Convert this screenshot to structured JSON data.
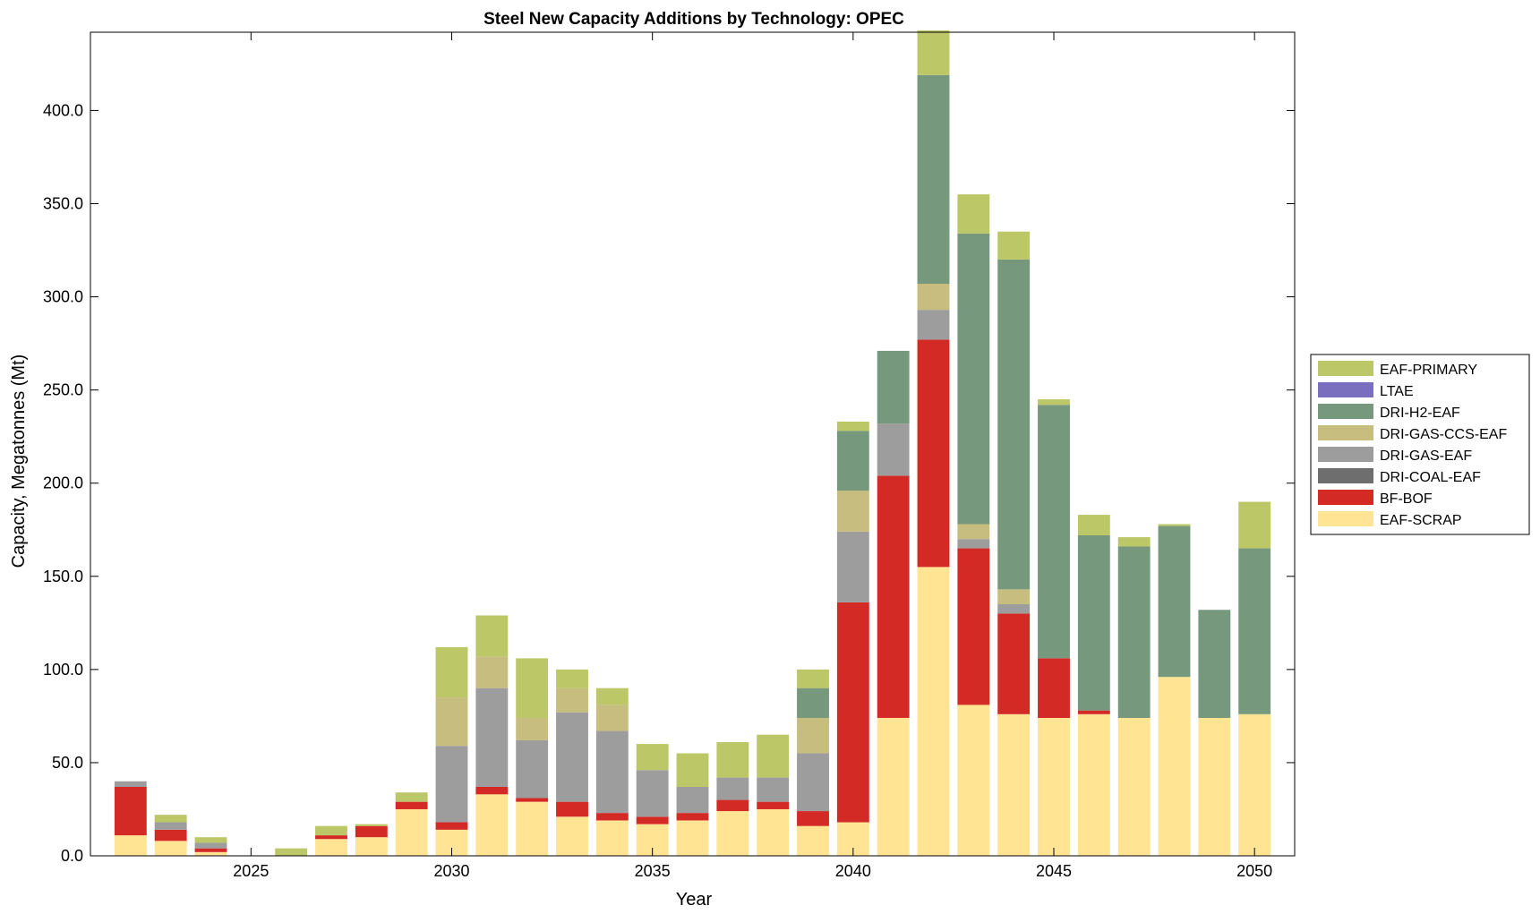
{
  "chart_data": {
    "type": "bar",
    "stacked": true,
    "title": "Steel New Capacity Additions by Technology: OPEC",
    "xlabel": "Year",
    "ylabel": "Capacity, Megatonnes (Mt)",
    "ylim": [
      0,
      442
    ],
    "xlim": [
      2021,
      2051
    ],
    "yticks": [
      0,
      50,
      100,
      150,
      200,
      250,
      300,
      350,
      400
    ],
    "ytick_labels": [
      "0.0",
      "50.0",
      "100.0",
      "150.0",
      "200.0",
      "250.0",
      "300.0",
      "350.0",
      "400.0"
    ],
    "xticks": [
      2025,
      2030,
      2035,
      2040,
      2045,
      2050
    ],
    "xtick_labels": [
      "2025",
      "2030",
      "2035",
      "2040",
      "2045",
      "2050"
    ],
    "legend_position": "right",
    "years": [
      2022,
      2023,
      2024,
      2025,
      2026,
      2027,
      2028,
      2029,
      2030,
      2031,
      2032,
      2033,
      2034,
      2035,
      2036,
      2037,
      2038,
      2039,
      2040,
      2041,
      2042,
      2043,
      2044,
      2045,
      2046,
      2047,
      2048,
      2049,
      2050
    ],
    "series": [
      {
        "name": "EAF-SCRAP",
        "color": "#FFE494",
        "values": [
          11,
          8,
          2,
          0,
          0,
          9,
          10,
          25,
          14,
          33,
          29,
          21,
          19,
          17,
          19,
          24,
          25,
          16,
          18,
          74,
          155,
          81,
          76,
          74,
          76,
          74,
          96,
          74,
          76
        ]
      },
      {
        "name": "BF-BOF",
        "color": "#D42A26",
        "values": [
          26,
          6,
          2,
          0,
          0,
          2,
          6,
          4,
          4,
          4,
          2,
          8,
          4,
          4,
          4,
          6,
          4,
          8,
          118,
          130,
          122,
          84,
          54,
          32,
          2,
          0,
          0,
          0,
          0
        ]
      },
      {
        "name": "DRI-COAL-EAF",
        "color": "#6E6E6E",
        "values": [
          0,
          0,
          0,
          0,
          0,
          0,
          0,
          0,
          0,
          0,
          0,
          0,
          0,
          0,
          0,
          0,
          0,
          0,
          0,
          0,
          0,
          0,
          0,
          0,
          0,
          0,
          0,
          0,
          0
        ]
      },
      {
        "name": "DRI-GAS-EAF",
        "color": "#9D9D9D",
        "values": [
          3,
          4,
          3,
          0,
          0,
          0,
          0,
          0,
          41,
          53,
          31,
          48,
          44,
          25,
          14,
          12,
          13,
          31,
          38,
          28,
          16,
          5,
          5,
          0,
          0,
          0,
          0,
          0,
          0
        ]
      },
      {
        "name": "DRI-GAS-CCS-EAF",
        "color": "#C6BD7E",
        "values": [
          0,
          0,
          0,
          0,
          0,
          0,
          0,
          0,
          26,
          17,
          12,
          13,
          14,
          0,
          0,
          0,
          0,
          19,
          22,
          0,
          14,
          8,
          8,
          0,
          0,
          0,
          0,
          0,
          0
        ]
      },
      {
        "name": "DRI-H2-EAF",
        "color": "#76987D",
        "values": [
          0,
          0,
          0,
          0,
          0,
          0,
          0,
          0,
          0,
          0,
          0,
          0,
          0,
          0,
          0,
          0,
          0,
          16,
          32,
          39,
          112,
          156,
          177,
          136,
          94,
          92,
          81,
          58,
          89
        ]
      },
      {
        "name": "LTAE",
        "color": "#7A6FBF",
        "values": [
          0,
          0,
          0,
          0,
          0,
          0,
          0,
          0,
          0,
          0,
          0,
          0,
          0,
          0,
          0,
          0,
          0,
          0,
          0,
          0,
          0,
          0,
          0,
          0,
          0,
          0,
          0,
          0,
          0
        ]
      },
      {
        "name": "EAF-PRIMARY",
        "color": "#BCC767",
        "values": [
          0,
          4,
          3,
          0,
          4,
          5,
          1,
          5,
          27,
          22,
          32,
          10,
          9,
          14,
          18,
          19,
          23,
          10,
          5,
          0,
          24,
          21,
          15,
          3,
          11,
          5,
          1,
          0,
          25
        ]
      }
    ],
    "legend_order": [
      "EAF-PRIMARY",
      "LTAE",
      "DRI-H2-EAF",
      "DRI-GAS-CCS-EAF",
      "DRI-GAS-EAF",
      "DRI-COAL-EAF",
      "BF-BOF",
      "EAF-SCRAP"
    ]
  }
}
